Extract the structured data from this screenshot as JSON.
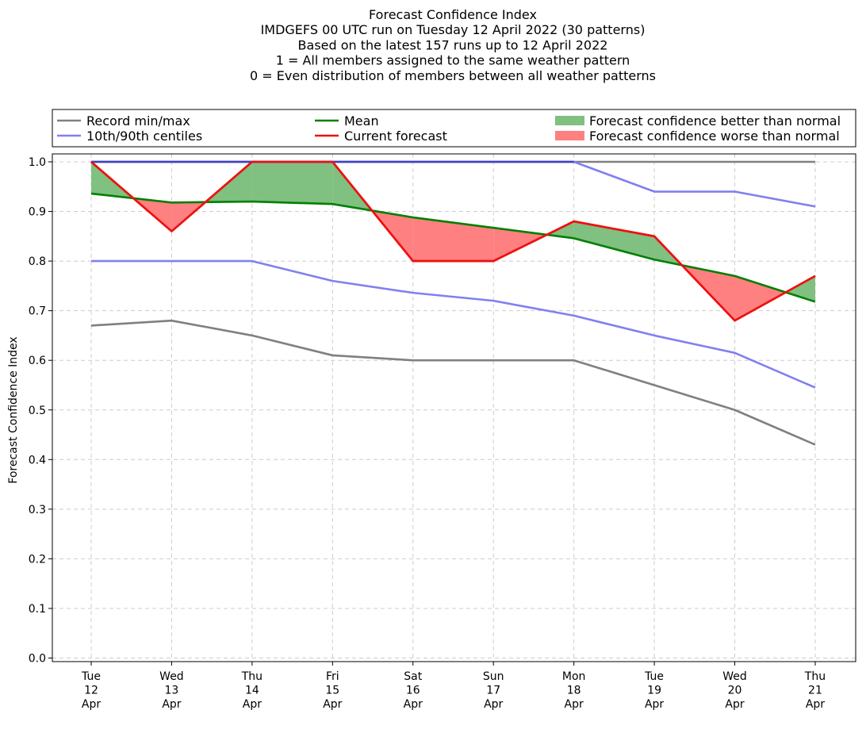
{
  "chart_data": {
    "type": "line",
    "title_lines": [
      "Forecast Confidence Index",
      "IMDGEFS 00 UTC run on Tuesday 12 April 2022 (30 patterns)",
      "Based on the latest 157 runs up to 12 April 2022",
      "1 = All members assigned to the same weather pattern",
      "0 = Even distribution of members between all weather patterns"
    ],
    "ylabel": "Forecast Confidence Index",
    "ylim": [
      0,
      1
    ],
    "yticks": [
      "0.0",
      "0.1",
      "0.2",
      "0.3",
      "0.4",
      "0.5",
      "0.6",
      "0.7",
      "0.8",
      "0.9",
      "1.0"
    ],
    "grid": true,
    "legend_position": "top",
    "categories": [
      [
        "Tue",
        "12",
        "Apr"
      ],
      [
        "Wed",
        "13",
        "Apr"
      ],
      [
        "Thu",
        "14",
        "Apr"
      ],
      [
        "Fri",
        "15",
        "Apr"
      ],
      [
        "Sat",
        "16",
        "Apr"
      ],
      [
        "Sun",
        "17",
        "Apr"
      ],
      [
        "Mon",
        "18",
        "Apr"
      ],
      [
        "Tue",
        "19",
        "Apr"
      ],
      [
        "Wed",
        "20",
        "Apr"
      ],
      [
        "Thu",
        "21",
        "Apr"
      ]
    ],
    "series": [
      {
        "name": "Record min/max",
        "role": "record_max",
        "color": "#808080",
        "values": [
          1.0,
          1.0,
          1.0,
          1.0,
          1.0,
          1.0,
          1.0,
          1.0,
          1.0,
          1.0
        ]
      },
      {
        "role": "record_min",
        "color": "#808080",
        "values": [
          0.67,
          0.68,
          0.65,
          0.61,
          0.6,
          0.6,
          0.6,
          0.55,
          0.5,
          0.43
        ]
      },
      {
        "name": "10th/90th centiles",
        "role": "centile_90",
        "color": "#8080f0",
        "values": [
          1.0,
          1.0,
          1.0,
          1.0,
          1.0,
          1.0,
          1.0,
          0.94,
          0.94,
          0.91
        ]
      },
      {
        "role": "centile_10",
        "color": "#8080f0",
        "values": [
          0.8,
          0.8,
          0.8,
          0.76,
          0.736,
          0.72,
          0.69,
          0.65,
          0.615,
          0.545
        ]
      },
      {
        "name": "Mean",
        "role": "mean",
        "color": "#008000",
        "values": [
          0.936,
          0.918,
          0.92,
          0.915,
          0.888,
          0.867,
          0.846,
          0.803,
          0.77,
          0.718
        ]
      },
      {
        "name": "Current forecast",
        "role": "current",
        "color": "#ee1111",
        "values": [
          1.0,
          0.86,
          1.0,
          1.0,
          0.8,
          0.8,
          0.88,
          0.85,
          0.68,
          0.77
        ]
      }
    ],
    "fills": [
      {
        "name": "Forecast confidence better than normal",
        "color": "#80c080"
      },
      {
        "name": "Forecast confidence worse than normal",
        "color": "#ff8080"
      }
    ]
  }
}
